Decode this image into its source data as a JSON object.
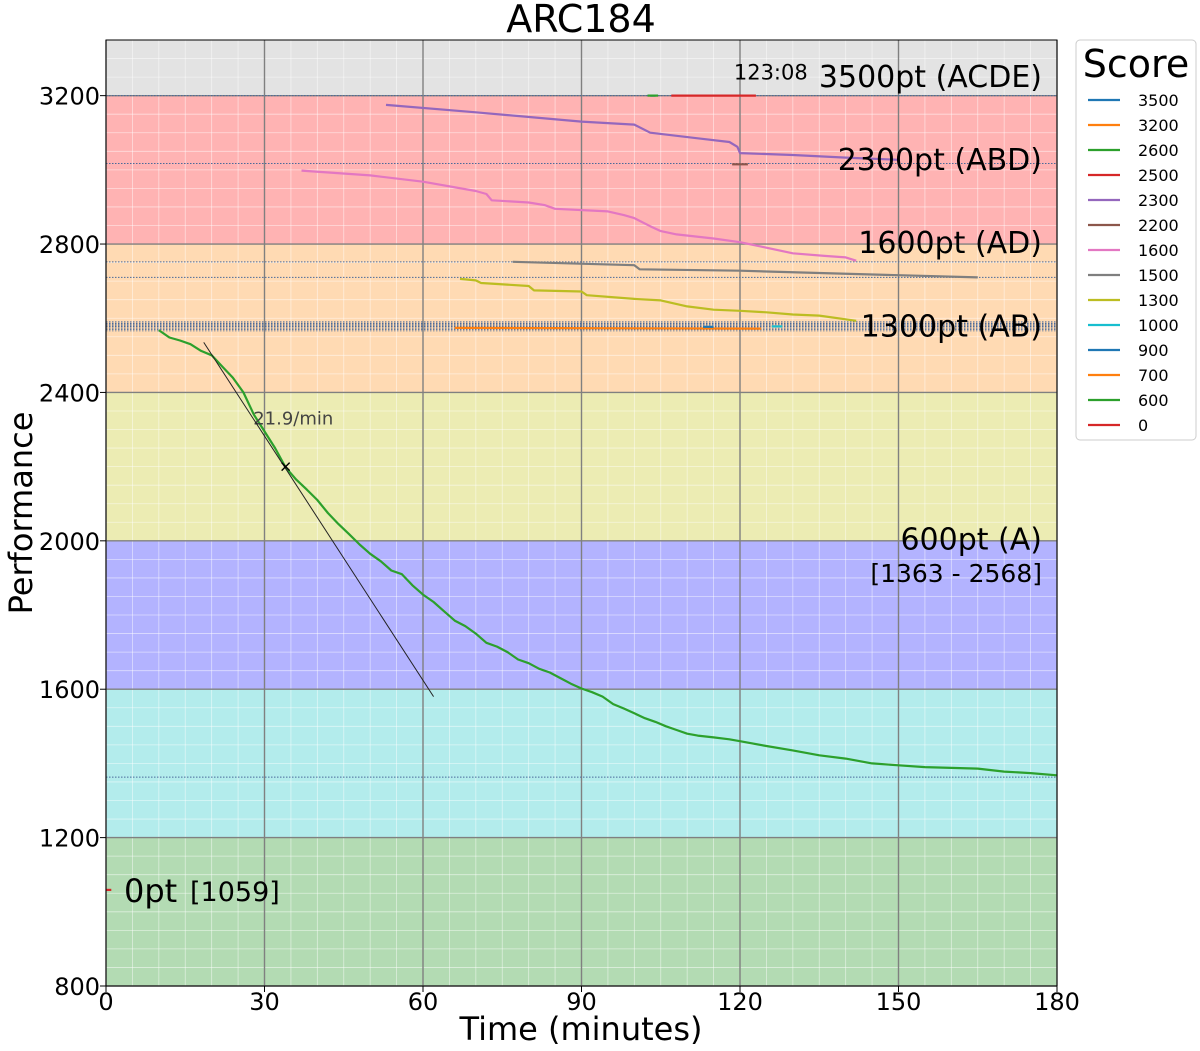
{
  "chart_data": {
    "type": "line",
    "title": "ARC184",
    "xlabel": "Time (minutes)",
    "ylabel": "Performance",
    "xlim": [
      0,
      180
    ],
    "ylim": [
      800,
      3350
    ],
    "x_ticks": [
      0,
      30,
      60,
      90,
      120,
      150,
      180
    ],
    "x_tick_labels": [
      "0",
      "30",
      "60",
      "90",
      "120",
      "150",
      "180"
    ],
    "y_ticks": [
      800,
      1200,
      1600,
      2000,
      2400,
      2800,
      3200
    ],
    "y_tick_labels": [
      "800",
      "1200",
      "1600",
      "2000",
      "2400",
      "2800",
      "3200"
    ],
    "grid": true,
    "legend": {
      "title": "Score",
      "placement": "outside-right",
      "entries": [
        {
          "label": "3500",
          "color": "#1f77b4"
        },
        {
          "label": "3200",
          "color": "#ff7f0e"
        },
        {
          "label": "2600",
          "color": "#2ca02c"
        },
        {
          "label": "2500",
          "color": "#d62728"
        },
        {
          "label": "2300",
          "color": "#9467bd"
        },
        {
          "label": "2200",
          "color": "#8c564b"
        },
        {
          "label": "1600",
          "color": "#e377c2"
        },
        {
          "label": "1500",
          "color": "#7f7f7f"
        },
        {
          "label": "1300",
          "color": "#bcbd22"
        },
        {
          "label": "1000",
          "color": "#17becf"
        },
        {
          "label": "900",
          "color": "#1f77b4"
        },
        {
          "label": "700",
          "color": "#ff7f0e"
        },
        {
          "label": "600",
          "color": "#2ca02c"
        },
        {
          "label": "0",
          "color": "#d62728"
        }
      ]
    },
    "bands": [
      {
        "from": 800,
        "to": 1200,
        "color": "#b3dbb3"
      },
      {
        "from": 1200,
        "to": 1600,
        "color": "#b3ecec"
      },
      {
        "from": 1600,
        "to": 2000,
        "color": "#b3b3ff"
      },
      {
        "from": 2000,
        "to": 2400,
        "color": "#ececb3"
      },
      {
        "from": 2400,
        "to": 2800,
        "color": "#ffdab3"
      },
      {
        "from": 2800,
        "to": 3200,
        "color": "#ffb3b3"
      },
      {
        "from": 3200,
        "to": 3350,
        "color": "#e3e3e3"
      }
    ],
    "threshold_lines": [
      3200,
      3017,
      2752,
      2710,
      2585,
      2578,
      1363
    ],
    "score_labels": [
      {
        "text": "3500pt (ACDE)",
        "x": 177,
        "y": 3250
      },
      {
        "text": "2300pt (ABD)",
        "x": 177,
        "y": 3027
      },
      {
        "text": "1600pt (AD)",
        "x": 177,
        "y": 2803
      },
      {
        "text": "1300pt (AB)",
        "x": 177,
        "y": 2578
      },
      {
        "text": "600pt (A)",
        "x": 177,
        "y": 2003
      },
      {
        "text": "[1363 - 2568]",
        "x": 177,
        "y": 1910
      }
    ],
    "zero_label": {
      "main": "0pt",
      "range": "[1059]",
      "y": 1059
    },
    "annotations": [
      {
        "text": "123:08",
        "x": 123,
        "y": 3243
      },
      {
        "text": "21.9/min",
        "x": 29,
        "y": 2335
      }
    ],
    "trend_line": {
      "x": [
        18.5,
        62
      ],
      "y": [
        2535,
        1580
      ],
      "color": "#222222"
    },
    "marker": {
      "x": 34,
      "y": 2200,
      "symbol": "x"
    },
    "series": [
      {
        "name": "3500",
        "color": "#1f77b4",
        "points": [
          [
            103,
            3200
          ],
          [
            104,
            3200
          ]
        ]
      },
      {
        "name": "2600",
        "color": "#2ca02c",
        "points": [
          [
            102.5,
            3200
          ],
          [
            104.5,
            3200
          ]
        ]
      },
      {
        "name": "2500",
        "color": "#d62728",
        "points": [
          [
            107,
            3200
          ],
          [
            123,
            3200
          ]
        ]
      },
      {
        "name": "2300",
        "color": "#9467bd",
        "points": [
          [
            53,
            3175
          ],
          [
            70,
            3155
          ],
          [
            90,
            3130
          ],
          [
            100,
            3122
          ],
          [
            103,
            3100
          ],
          [
            112,
            3085
          ],
          [
            118,
            3075
          ],
          [
            119.5,
            3062
          ],
          [
            120,
            3045
          ],
          [
            130,
            3040
          ],
          [
            140,
            3033
          ],
          [
            150,
            3027
          ]
        ]
      },
      {
        "name": "2200",
        "color": "#8c564b",
        "points": [
          [
            118.5,
            3015
          ],
          [
            121.5,
            3015
          ]
        ]
      },
      {
        "name": "1600",
        "color": "#e377c2",
        "points": [
          [
            37,
            2998
          ],
          [
            50,
            2985
          ],
          [
            60,
            2968
          ],
          [
            70,
            2943
          ],
          [
            72,
            2935
          ],
          [
            73,
            2918
          ],
          [
            80,
            2912
          ],
          [
            83,
            2905
          ],
          [
            85,
            2895
          ],
          [
            95,
            2888
          ],
          [
            98,
            2878
          ],
          [
            100,
            2870
          ],
          [
            103,
            2848
          ],
          [
            105,
            2835
          ],
          [
            108,
            2826
          ],
          [
            115,
            2815
          ],
          [
            120,
            2805
          ],
          [
            124,
            2793
          ],
          [
            130,
            2775
          ],
          [
            136,
            2768
          ],
          [
            140,
            2764
          ],
          [
            142,
            2755
          ]
        ]
      },
      {
        "name": "1500",
        "color": "#7f7f7f",
        "points": [
          [
            77,
            2752
          ],
          [
            100,
            2743
          ],
          [
            101,
            2732
          ],
          [
            120,
            2728
          ],
          [
            135,
            2722
          ],
          [
            150,
            2716
          ],
          [
            165,
            2710
          ]
        ]
      },
      {
        "name": "1300",
        "color": "#bcbd22",
        "points": [
          [
            67,
            2706
          ],
          [
            70,
            2702
          ],
          [
            71,
            2695
          ],
          [
            80,
            2687
          ],
          [
            81,
            2675
          ],
          [
            90,
            2672
          ],
          [
            91,
            2662
          ],
          [
            100,
            2652
          ],
          [
            105,
            2648
          ],
          [
            110,
            2632
          ],
          [
            115,
            2623
          ],
          [
            120,
            2620
          ],
          [
            125,
            2616
          ],
          [
            130,
            2610
          ],
          [
            135,
            2607
          ],
          [
            140,
            2597
          ],
          [
            142,
            2593
          ]
        ]
      },
      {
        "name": "700",
        "color": "#ff7f0e",
        "points": [
          [
            66,
            2574
          ],
          [
            124,
            2572
          ]
        ]
      },
      {
        "name": "900",
        "color": "#1f77b4",
        "points": [
          [
            113,
            2577
          ],
          [
            115,
            2577
          ]
        ]
      },
      {
        "name": "1000",
        "color": "#17becf",
        "points": [
          [
            126,
            2578
          ],
          [
            128,
            2578
          ]
        ]
      },
      {
        "name": "0",
        "color": "#d62728",
        "points": [
          [
            0,
            1059
          ],
          [
            1,
            1059
          ]
        ]
      },
      {
        "name": "600",
        "color": "#2ca02c",
        "points": [
          [
            10,
            2568
          ],
          [
            12,
            2548
          ],
          [
            14,
            2540
          ],
          [
            16,
            2530
          ],
          [
            18,
            2512
          ],
          [
            20,
            2500
          ],
          [
            22,
            2470
          ],
          [
            24,
            2440
          ],
          [
            26,
            2400
          ],
          [
            28,
            2340
          ],
          [
            30,
            2295
          ],
          [
            32,
            2250
          ],
          [
            34,
            2198
          ],
          [
            36,
            2165
          ],
          [
            38,
            2138
          ],
          [
            40,
            2110
          ],
          [
            42,
            2075
          ],
          [
            44,
            2045
          ],
          [
            46,
            2018
          ],
          [
            48,
            1990
          ],
          [
            50,
            1965
          ],
          [
            52,
            1945
          ],
          [
            54,
            1920
          ],
          [
            56,
            1910
          ],
          [
            58,
            1880
          ],
          [
            60,
            1855
          ],
          [
            62,
            1835
          ],
          [
            64,
            1810
          ],
          [
            66,
            1785
          ],
          [
            68,
            1770
          ],
          [
            70,
            1750
          ],
          [
            72,
            1725
          ],
          [
            74,
            1715
          ],
          [
            76,
            1700
          ],
          [
            78,
            1680
          ],
          [
            80,
            1670
          ],
          [
            82,
            1655
          ],
          [
            84,
            1645
          ],
          [
            86,
            1630
          ],
          [
            88,
            1615
          ],
          [
            90,
            1602
          ],
          [
            92,
            1592
          ],
          [
            94,
            1580
          ],
          [
            96,
            1560
          ],
          [
            98,
            1548
          ],
          [
            100,
            1535
          ],
          [
            102,
            1522
          ],
          [
            104,
            1512
          ],
          [
            106,
            1500
          ],
          [
            108,
            1490
          ],
          [
            110,
            1480
          ],
          [
            112,
            1475
          ],
          [
            115,
            1470
          ],
          [
            118,
            1465
          ],
          [
            120,
            1460
          ],
          [
            125,
            1447
          ],
          [
            130,
            1435
          ],
          [
            135,
            1422
          ],
          [
            140,
            1413
          ],
          [
            145,
            1400
          ],
          [
            150,
            1395
          ],
          [
            155,
            1390
          ],
          [
            160,
            1388
          ],
          [
            165,
            1386
          ],
          [
            170,
            1378
          ],
          [
            175,
            1374
          ],
          [
            180,
            1368
          ]
        ]
      }
    ]
  }
}
